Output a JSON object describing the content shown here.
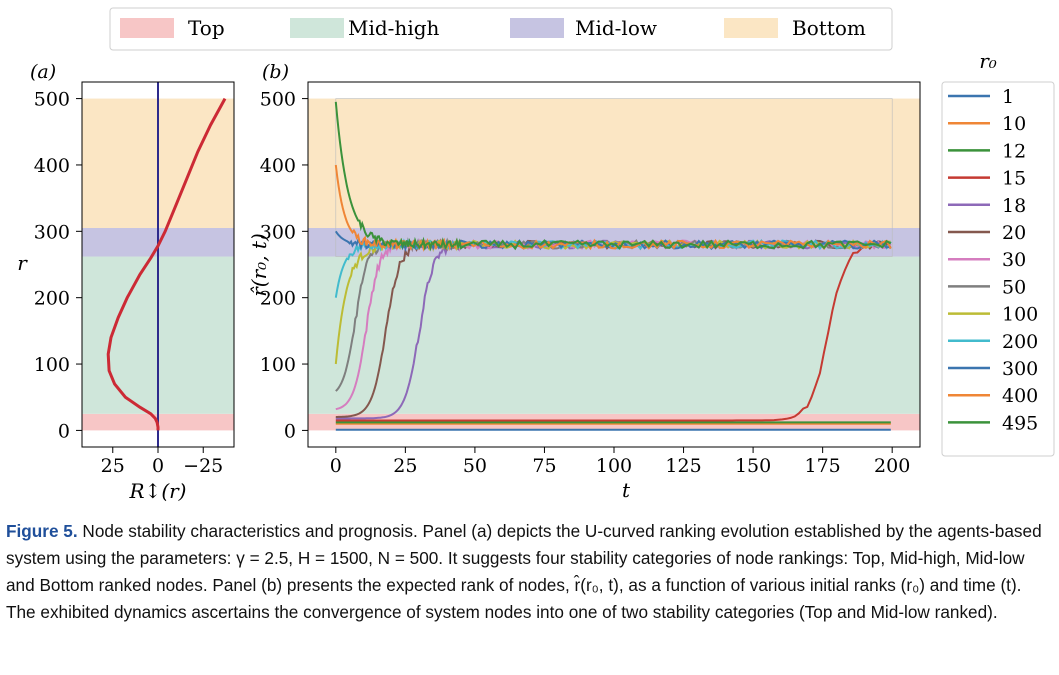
{
  "legend_top": {
    "entries": [
      {
        "label": "Top",
        "color": "#f7c6c6"
      },
      {
        "label": "Mid-high",
        "color": "#cfe6da"
      },
      {
        "label": "Mid-low",
        "color": "#c6c4e2"
      },
      {
        "label": "Bottom",
        "color": "#fbe6c4"
      }
    ]
  },
  "panel_labels": {
    "a": "(a)",
    "b": "(b)"
  },
  "chart_data": [
    {
      "type": "line",
      "panel": "(a)",
      "xlabel": "R↕(r)",
      "ylabel": "r",
      "xlim": [
        42,
        -42
      ],
      "ylim": [
        -25,
        525
      ],
      "xticks": [
        25,
        0,
        -25
      ],
      "xtick_labels": [
        "25",
        "0",
        "−25"
      ],
      "yticks": [
        0,
        100,
        200,
        300,
        400,
        500
      ],
      "bands": [
        {
          "name": "Top",
          "from": 0,
          "to": 25
        },
        {
          "name": "Mid-high",
          "from": 25,
          "to": 262
        },
        {
          "name": "Mid-low",
          "from": 262,
          "to": 305
        },
        {
          "name": "Bottom",
          "from": 305,
          "to": 500
        }
      ],
      "vline_x": 0,
      "curve": {
        "color": "#cc2a35",
        "points": [
          [
            0,
            0
          ],
          [
            0,
            5
          ],
          [
            0.5,
            12
          ],
          [
            1.5,
            18
          ],
          [
            4,
            25
          ],
          [
            10,
            35
          ],
          [
            18,
            50
          ],
          [
            24,
            70
          ],
          [
            27,
            90
          ],
          [
            27.5,
            115
          ],
          [
            26,
            140
          ],
          [
            22,
            170
          ],
          [
            17,
            200
          ],
          [
            10,
            235
          ],
          [
            4,
            260
          ],
          [
            0,
            278
          ],
          [
            -4,
            300
          ],
          [
            -10,
            340
          ],
          [
            -16,
            380
          ],
          [
            -22,
            420
          ],
          [
            -29,
            460
          ],
          [
            -37,
            500
          ]
        ]
      }
    },
    {
      "type": "line",
      "panel": "(b)",
      "xlabel": "t",
      "ylabel": "r̂(r₀, t)",
      "xlim": [
        -10,
        210
      ],
      "ylim": [
        -25,
        525
      ],
      "xticks": [
        0,
        25,
        50,
        75,
        100,
        125,
        150,
        175,
        200
      ],
      "yticks": [
        0,
        100,
        200,
        300,
        400,
        500
      ],
      "legend_title": "r₀",
      "series": [
        {
          "name": "1",
          "color": "#3b75af",
          "start": 1
        },
        {
          "name": "10",
          "color": "#ef8636",
          "start": 10
        },
        {
          "name": "12",
          "color": "#3b923b",
          "start": 12
        },
        {
          "name": "15",
          "color": "#c53a32",
          "start": 15
        },
        {
          "name": "18",
          "color": "#8d69b8",
          "start": 18
        },
        {
          "name": "20",
          "color": "#84584e",
          "start": 20
        },
        {
          "name": "30",
          "color": "#d57dbf",
          "start": 30
        },
        {
          "name": "50",
          "color": "#7f7f7f",
          "start": 50
        },
        {
          "name": "100",
          "color": "#bcbc35",
          "start": 100
        },
        {
          "name": "200",
          "color": "#42bbcd",
          "start": 200
        },
        {
          "name": "300",
          "color": "#3b75af",
          "start": 300
        },
        {
          "name": "400",
          "color": "#ef8636",
          "start": 400
        },
        {
          "name": "495",
          "color": "#3b923b",
          "start": 495
        }
      ]
    }
  ],
  "caption": {
    "label": "Figure 5.",
    "text": " Node stability characteristics and prognosis. Panel (a) depicts the U-curved ranking evolution established by the agents-based system using the parameters: γ = 2.5, H = 1500, N = 500. It suggests four stability categories of node rankings: Top, Mid-high, Mid-low and Bottom ranked nodes. Panel (b) presents the expected rank of nodes, r̂(r₀, t), as a function of various initial ranks (r₀) and time (t). The exhibited dynamics ascertains the convergence of system nodes into one of two stability categories (Top and Mid-low ranked)."
  }
}
